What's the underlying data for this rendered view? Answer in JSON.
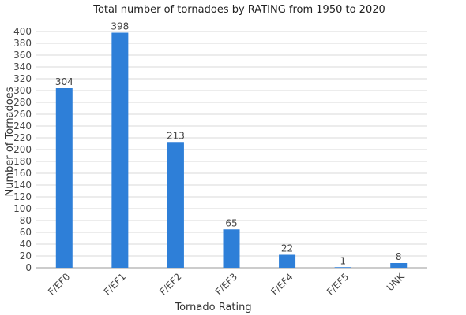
{
  "chart_data": {
    "type": "bar",
    "title": "Total number of tornadoes by RATING from 1950 to 2020",
    "xlabel": "Tornado Rating",
    "ylabel": "Number of Tornadoes",
    "categories": [
      "F/EF0",
      "F/EF1",
      "F/EF2",
      "F/EF3",
      "F/EF4",
      "F/EF5",
      "UNK"
    ],
    "values": [
      304,
      398,
      213,
      65,
      22,
      1,
      8
    ],
    "data_labels": [
      "304",
      "398",
      "213",
      "65",
      "22",
      "1",
      "8"
    ],
    "ylim": [
      0,
      400
    ],
    "ytick_step": 20,
    "yticks": [
      "0",
      "20",
      "40",
      "60",
      "80",
      "100",
      "120",
      "140",
      "160",
      "180",
      "200",
      "220",
      "240",
      "260",
      "280",
      "300",
      "320",
      "340",
      "360",
      "380",
      "400"
    ],
    "grid": true,
    "legend": "none",
    "colors": {
      "bar": "#2e7fd8",
      "grid": "#d9d9d9",
      "axis": "#999999"
    }
  }
}
